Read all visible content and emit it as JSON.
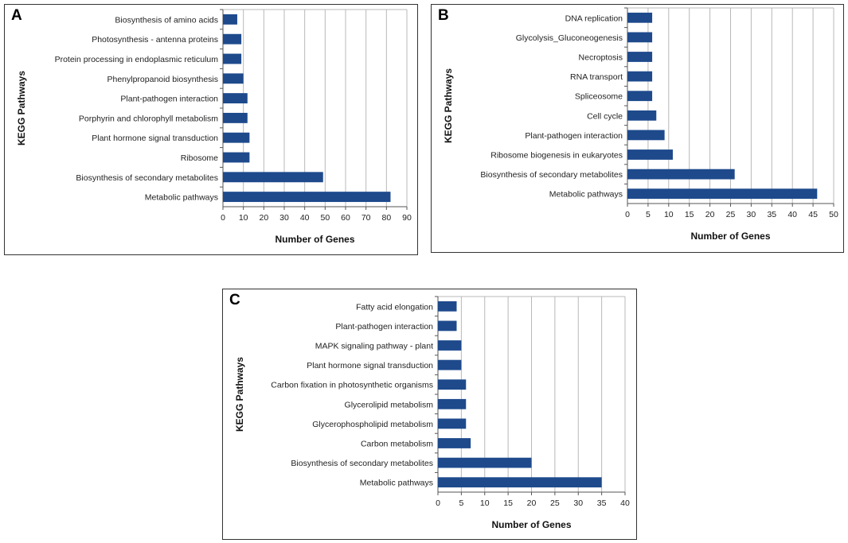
{
  "colors": {
    "bar": "#1e4a8c",
    "grid": "#b8b8b8",
    "axis": "#555555",
    "text": "#222222"
  },
  "chart_data": [
    {
      "panel": "A",
      "type": "bar",
      "orientation": "horizontal",
      "title": "",
      "xlabel": "Number of Genes",
      "ylabel": "KEGG Pathways",
      "xlim": [
        0,
        90
      ],
      "xticks": [
        "0",
        "10",
        "20",
        "30",
        "40",
        "50",
        "60",
        "70",
        "80",
        "90"
      ],
      "grid": true,
      "categories": [
        "Biosynthesis of amino acids",
        "Photosynthesis - antenna proteins",
        "Protein processing in endoplasmic reticulum",
        "Phenylpropanoid biosynthesis",
        "Plant-pathogen interaction",
        "Porphyrin and chlorophyll metabolism",
        "Plant hormone signal transduction",
        "Ribosome",
        "Biosynthesis of secondary metabolites",
        "Metabolic pathways"
      ],
      "values": [
        7,
        9,
        9,
        10,
        12,
        12,
        13,
        13,
        49,
        82
      ]
    },
    {
      "panel": "B",
      "type": "bar",
      "orientation": "horizontal",
      "title": "",
      "xlabel": "Number of Genes",
      "ylabel": "KEGG Pathways",
      "xlim": [
        0,
        50
      ],
      "xticks": [
        "0",
        "5",
        "10",
        "15",
        "20",
        "25",
        "30",
        "35",
        "40",
        "45",
        "50"
      ],
      "grid": true,
      "categories": [
        "DNA replication",
        "Glycolysis_Gluconeogenesis",
        "Necroptosis",
        "RNA transport",
        "Spliceosome",
        "Cell cycle",
        "Plant-pathogen interaction",
        "Ribosome biogenesis in eukaryotes",
        "Biosynthesis of secondary metabolites",
        "Metabolic pathways"
      ],
      "values": [
        6,
        6,
        6,
        6,
        6,
        7,
        9,
        11,
        26,
        46
      ]
    },
    {
      "panel": "C",
      "type": "bar",
      "orientation": "horizontal",
      "title": "",
      "xlabel": "Number of Genes",
      "ylabel": "KEGG Pathways",
      "xlim": [
        0,
        40
      ],
      "xticks": [
        "0",
        "5",
        "10",
        "15",
        "20",
        "25",
        "30",
        "35",
        "40"
      ],
      "grid": true,
      "categories": [
        "Fatty acid elongation",
        "Plant-pathogen interaction",
        "MAPK signaling pathway - plant",
        "Plant hormone signal transduction",
        "Carbon fixation in photosynthetic organisms",
        "Glycerolipid metabolism",
        "Glycerophospholipid metabolism",
        "Carbon metabolism",
        "Biosynthesis of secondary metabolites",
        "Metabolic pathways"
      ],
      "values": [
        4,
        4,
        5,
        5,
        6,
        6,
        6,
        7,
        20,
        35
      ]
    }
  ]
}
